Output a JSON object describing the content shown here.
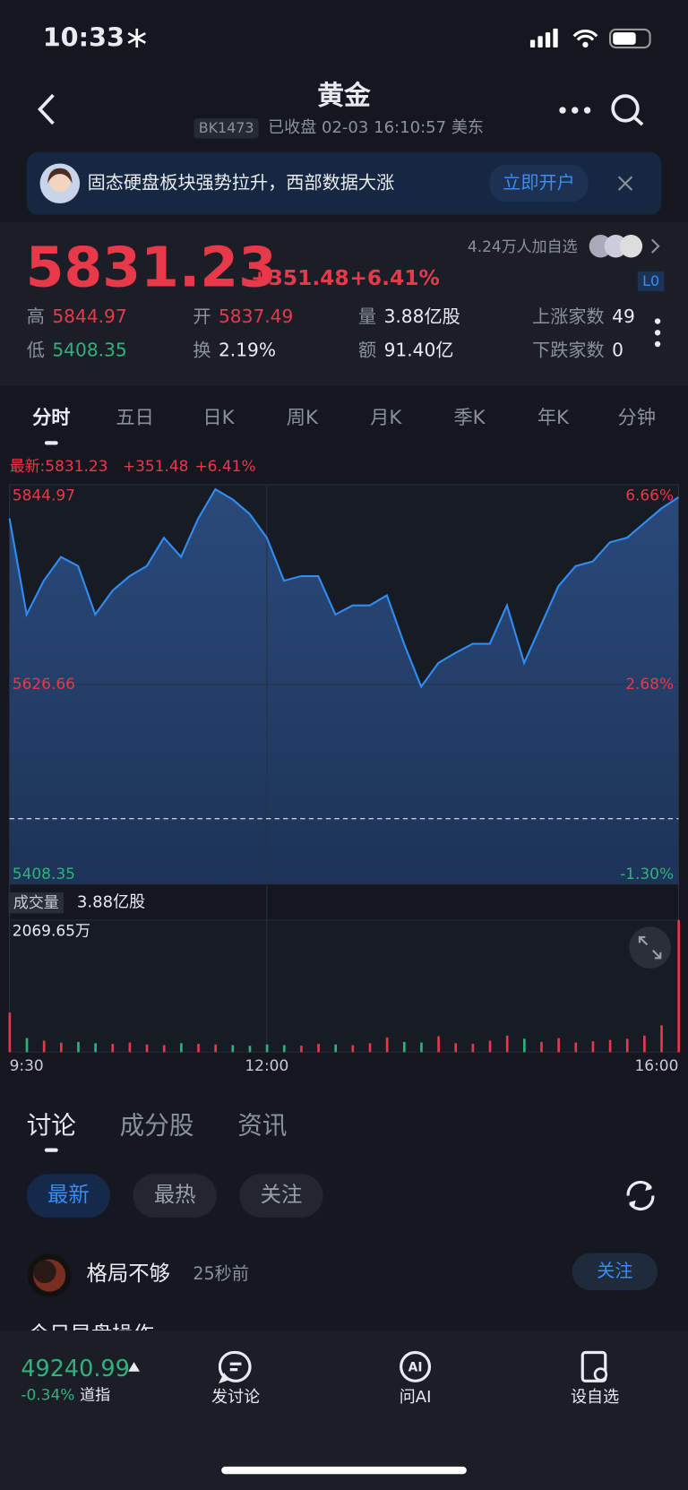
{
  "status": {
    "time": "10:33"
  },
  "header": {
    "title": "黄金",
    "code": "BK1473",
    "status": "已收盘 02-03 16:10:57 美东"
  },
  "banner": {
    "text": "固态硬盘板块强势拉升，西部数据大涨",
    "button": "立即开户"
  },
  "quote": {
    "price": "5831.23",
    "change": "+351.48",
    "change_pct": "+6.41%",
    "followers": "4.24万人加自选",
    "level": "L0",
    "stats": [
      {
        "label": "高",
        "value": "5844.97"
      },
      {
        "label": "开",
        "value": "5837.49"
      },
      {
        "label": "量",
        "value": "3.88亿股"
      },
      {
        "label": "上涨家数",
        "value": "49"
      },
      {
        "label": "低",
        "value": "5408.35"
      },
      {
        "label": "换",
        "value": "2.19%"
      },
      {
        "label": "额",
        "value": "91.40亿"
      },
      {
        "label": "下跌家数",
        "value": "0"
      }
    ]
  },
  "tabs": [
    "分时",
    "五日",
    "日K",
    "周K",
    "月K",
    "季K",
    "年K",
    "分钟"
  ],
  "chart_data": [
    {
      "type": "line",
      "header": [
        "最新:5831.23",
        "+351.48",
        "+6.41%"
      ],
      "x": [
        0,
        10,
        20,
        30,
        40,
        50,
        60,
        70,
        80,
        90,
        100,
        110,
        120,
        130,
        140,
        150,
        160,
        170,
        180,
        190,
        200,
        210,
        220,
        230,
        240,
        250,
        260,
        270,
        280,
        290,
        300,
        310,
        320,
        330,
        340,
        350,
        360,
        370,
        380,
        390
      ],
      "series": [
        {
          "color": "#2f8cf5",
          "values": [
            5808,
            5703,
            5740,
            5766,
            5756,
            5703,
            5729,
            5745,
            5756,
            5787,
            5766,
            5808,
            5840,
            5829,
            5813,
            5787,
            5740,
            5745,
            5745,
            5703,
            5713,
            5713,
            5724,
            5671,
            5624,
            5650,
            5661,
            5671,
            5671,
            5713,
            5650,
            5692,
            5734,
            5756,
            5761,
            5782,
            5787,
            5803,
            5819,
            5831.23
          ]
        }
      ],
      "prev_close": 5479.75,
      "xlim": [
        0,
        390
      ],
      "ylim": [
        5408.35,
        5844.97
      ],
      "yticks": [
        5844.97,
        5626.66,
        5408.35
      ],
      "y2lim": [
        -1.3,
        6.66
      ],
      "y2ticks": [
        {
          "value": 6.66,
          "label": "6.66%"
        },
        {
          "value": 2.68,
          "label": "2.68%"
        },
        {
          "value": -1.3,
          "label": "-1.30%"
        }
      ],
      "up_color": "#e8394a",
      "down_color": "#2fb37a",
      "grid": true
    },
    {
      "type": "bar",
      "title": "成交量",
      "subtitle": "3.88亿股",
      "x": [
        0,
        10,
        20,
        30,
        40,
        50,
        60,
        70,
        80,
        90,
        100,
        110,
        120,
        130,
        140,
        150,
        160,
        170,
        180,
        190,
        200,
        210,
        220,
        230,
        240,
        250,
        260,
        270,
        280,
        290,
        300,
        310,
        320,
        330,
        340,
        350,
        360,
        370,
        380,
        390
      ],
      "values": [
        620,
        220,
        180,
        150,
        160,
        140,
        130,
        150,
        120,
        110,
        140,
        130,
        120,
        110,
        100,
        120,
        110,
        100,
        130,
        120,
        110,
        140,
        230,
        160,
        150,
        250,
        140,
        130,
        180,
        260,
        210,
        160,
        220,
        150,
        170,
        190,
        210,
        260,
        420,
        2069.65
      ],
      "xlim": [
        0,
        390
      ],
      "ylim": [
        0,
        2069.65
      ],
      "yticks": [
        {
          "value": 2069.65,
          "label": "2069.65万"
        }
      ],
      "xticks": [
        {
          "value": 0,
          "label": "9:30"
        },
        {
          "value": 150,
          "label": "12:00"
        },
        {
          "value": 390,
          "label": "16:00"
        }
      ]
    }
  ],
  "discussion": {
    "tabs": [
      "讨论",
      "成分股",
      "资讯"
    ],
    "filters": [
      "最新",
      "最热",
      "关注"
    ],
    "post": {
      "user": "格局不够",
      "time": "25秒前",
      "follow": "关注",
      "text": "今日早盘操作:"
    }
  },
  "bottom": {
    "index": {
      "value": "49240.99",
      "change": "-0.34%",
      "name": "道指"
    },
    "actions": [
      "发讨论",
      "问AI",
      "设自选"
    ]
  }
}
